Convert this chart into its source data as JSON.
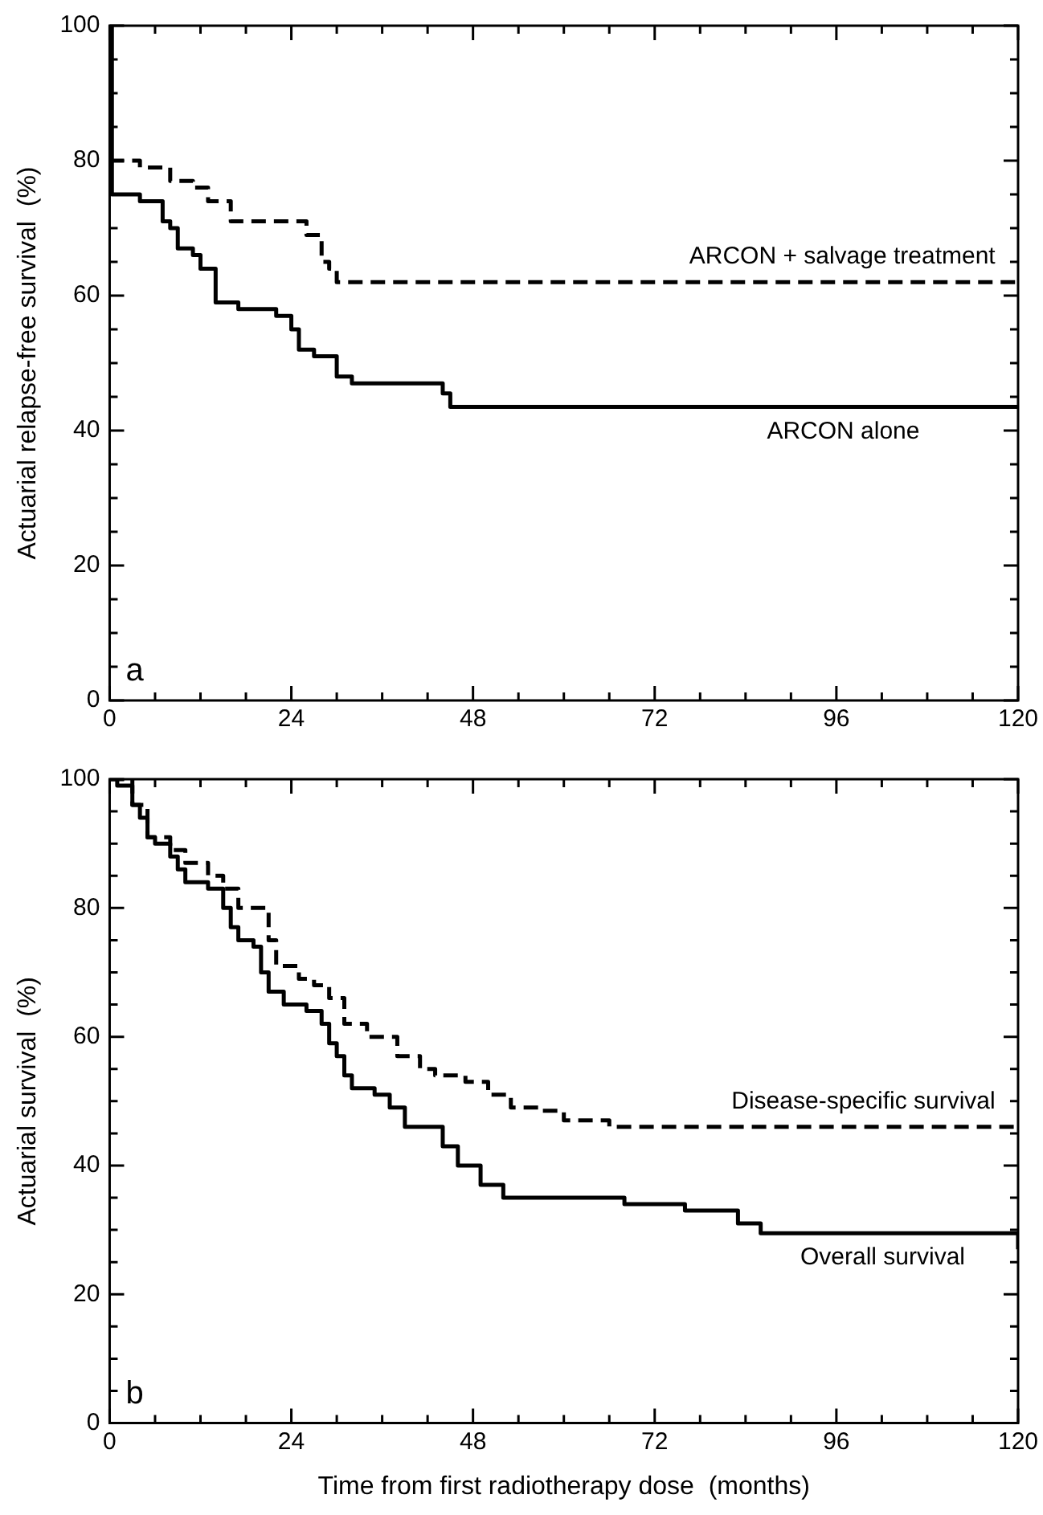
{
  "chart_data": [
    {
      "type": "step",
      "ylabel": "Actuarial relapse-free survival  (%)",
      "xlim": [
        0,
        120
      ],
      "ylim": [
        0,
        100
      ],
      "xticks": [
        0,
        {
          "value": 6,
          "label": null
        },
        {
          "value": 12,
          "label": null
        },
        {
          "value": 18,
          "label": null
        },
        24,
        {
          "value": 30,
          "label": null
        },
        {
          "value": 36,
          "label": null
        },
        {
          "value": 42,
          "label": null
        },
        48,
        {
          "value": 54,
          "label": null
        },
        {
          "value": 60,
          "label": null
        },
        {
          "value": 66,
          "label": null
        },
        72,
        {
          "value": 78,
          "label": null
        },
        {
          "value": 84,
          "label": null
        },
        {
          "value": 90,
          "label": null
        },
        96,
        {
          "value": 102,
          "label": null
        },
        {
          "value": 108,
          "label": null
        },
        {
          "value": 114,
          "label": null
        },
        120
      ],
      "yticks": [
        0,
        {
          "value": 5,
          "label": null
        },
        {
          "value": 10,
          "label": null
        },
        {
          "value": 15,
          "label": null
        },
        20,
        {
          "value": 25,
          "label": null
        },
        {
          "value": 30,
          "label": null
        },
        {
          "value": 35,
          "label": null
        },
        40,
        {
          "value": 45,
          "label": null
        },
        {
          "value": 50,
          "label": null
        },
        {
          "value": 55,
          "label": null
        },
        60,
        {
          "value": 65,
          "label": null
        },
        {
          "value": 70,
          "label": null
        },
        {
          "value": 75,
          "label": null
        },
        80,
        {
          "value": 85,
          "label": null
        },
        {
          "value": 90,
          "label": null
        },
        {
          "value": 95,
          "label": null
        },
        100
      ],
      "grid": false,
      "legend": false,
      "marker": "none",
      "series": [
        {
          "color": "#000000",
          "line_style": "solid",
          "x": [
            0,
            0.3,
            4,
            7,
            8,
            9,
            11,
            12,
            14,
            17,
            22,
            24,
            25,
            27,
            30,
            32,
            37,
            44,
            45,
            120
          ],
          "values": [
            100,
            75,
            74,
            71,
            70,
            67,
            66,
            64,
            59,
            58,
            57,
            55,
            52,
            51,
            48,
            47,
            47,
            45.5,
            43.5,
            43.5
          ]
        },
        {
          "color": "#000000",
          "line_style": "dashed",
          "x": [
            0,
            4,
            8,
            11,
            13,
            16,
            24,
            26,
            28,
            29,
            30,
            120
          ],
          "values": [
            80,
            79,
            77,
            76,
            74,
            71,
            71,
            69,
            65,
            64,
            62,
            62
          ]
        }
      ],
      "annotations": [
        {
          "text": "ARCON + salvage treatment",
          "x": 117,
          "y": 62
        },
        {
          "text": "ARCON alone",
          "x": 107,
          "y": 43.5
        },
        "a"
      ]
    },
    {
      "type": "step",
      "xlabel": "Time from first radiotherapy dose  (months)",
      "ylabel": "Actuarial survival  (%)",
      "xlim": [
        0,
        120
      ],
      "ylim": [
        0,
        100
      ],
      "xticks": [
        0,
        {
          "value": 6,
          "label": null
        },
        {
          "value": 12,
          "label": null
        },
        {
          "value": 18,
          "label": null
        },
        24,
        {
          "value": 30,
          "label": null
        },
        {
          "value": 36,
          "label": null
        },
        {
          "value": 42,
          "label": null
        },
        48,
        {
          "value": 54,
          "label": null
        },
        {
          "value": 60,
          "label": null
        },
        {
          "value": 66,
          "label": null
        },
        72,
        {
          "value": 78,
          "label": null
        },
        {
          "value": 84,
          "label": null
        },
        {
          "value": 90,
          "label": null
        },
        96,
        {
          "value": 102,
          "label": null
        },
        {
          "value": 108,
          "label": null
        },
        {
          "value": 114,
          "label": null
        },
        120
      ],
      "yticks": [
        0,
        {
          "value": 5,
          "label": null
        },
        {
          "value": 10,
          "label": null
        },
        {
          "value": 15,
          "label": null
        },
        20,
        {
          "value": 25,
          "label": null
        },
        {
          "value": 30,
          "label": null
        },
        {
          "value": 35,
          "label": null
        },
        40,
        {
          "value": 45,
          "label": null
        },
        {
          "value": 50,
          "label": null
        },
        {
          "value": 55,
          "label": null
        },
        60,
        {
          "value": 65,
          "label": null
        },
        {
          "value": 70,
          "label": null
        },
        {
          "value": 75,
          "label": null
        },
        80,
        {
          "value": 85,
          "label": null
        },
        {
          "value": 90,
          "label": null
        },
        {
          "value": 95,
          "label": null
        },
        100
      ],
      "grid": false,
      "legend": false,
      "marker": "none",
      "series": [
        {
          "color": "#000000",
          "line_style": "solid",
          "x": [
            0,
            1,
            3,
            4,
            5,
            6,
            8,
            9,
            10,
            13,
            15,
            16,
            17,
            19,
            20,
            21,
            23,
            26,
            28,
            29,
            30,
            31,
            32,
            35,
            37,
            39,
            44,
            46,
            49,
            52,
            60,
            68,
            76,
            80,
            83,
            86,
            120,
            120
          ],
          "values": [
            100,
            99,
            96,
            94,
            91,
            90,
            88,
            86,
            84,
            83,
            80,
            77,
            75,
            74,
            70,
            67,
            65,
            64,
            62,
            59,
            57,
            54,
            52,
            51,
            49,
            46,
            43,
            40,
            37,
            35,
            35,
            34,
            33,
            33,
            31,
            29.5,
            29.5,
            27
          ]
        },
        {
          "color": "#000000",
          "line_style": "dashed",
          "x": [
            0,
            3,
            5,
            8,
            10,
            13,
            15,
            17,
            19,
            21,
            22,
            25,
            27,
            29,
            31,
            34,
            38,
            41,
            43,
            47,
            50,
            53,
            57,
            60,
            66,
            120
          ],
          "values": [
            100,
            96,
            91,
            89,
            87,
            85,
            83,
            80,
            80,
            75,
            71,
            69,
            68,
            66,
            62,
            60,
            57,
            55,
            54,
            53,
            51,
            49,
            48.5,
            47,
            46,
            46
          ]
        }
      ],
      "annotations": [
        {
          "text": "Disease-specific survival",
          "x": 117,
          "y": 46
        },
        {
          "text": "Overall survival",
          "x": 113,
          "y": 29.5
        },
        "b"
      ]
    }
  ]
}
